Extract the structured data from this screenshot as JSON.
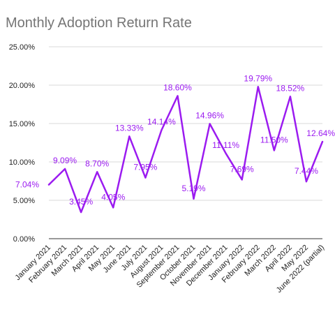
{
  "chart_data": {
    "type": "line",
    "title": "Monthly Adoption Return Rate",
    "xlabel": "",
    "ylabel": "",
    "categories": [
      "January 2021",
      "February 2021",
      "March 2021",
      "April 2021",
      "May 2021",
      "June 2021",
      "July 2021",
      "August 2021",
      "September 2021",
      "October 2021",
      "November 2021",
      "December 2021",
      "January 2022",
      "February 2022",
      "March 2022",
      "April 2022",
      "May 2022",
      "June 2022 (partial)"
    ],
    "series": [
      {
        "values": [
          7.04,
          9.09,
          3.45,
          8.7,
          4.05,
          13.33,
          7.95,
          14.14,
          18.6,
          5.19,
          14.96,
          11.11,
          7.69,
          19.79,
          11.5,
          18.52,
          7.44,
          12.64
        ],
        "data_labels": [
          "7.04%",
          "9.09%",
          "3.45%",
          "8.70%",
          "4.05%",
          "13.33%",
          "7.95%",
          "14.14%",
          "18.60%",
          "5.19%",
          "14.96%",
          "11.11%",
          "7.69%",
          "19.79%",
          "11.50%",
          "18.52%",
          "7.44%",
          "12.64%"
        ]
      }
    ],
    "yticks": [
      "0.00%",
      "5.00%",
      "10.00%",
      "15.00%",
      "20.00%",
      "25.00%"
    ],
    "ylim": [
      0,
      25
    ],
    "grid": true,
    "legend": "none",
    "line_color": "#9b1bf0",
    "label_color": "#9b1bf0"
  }
}
